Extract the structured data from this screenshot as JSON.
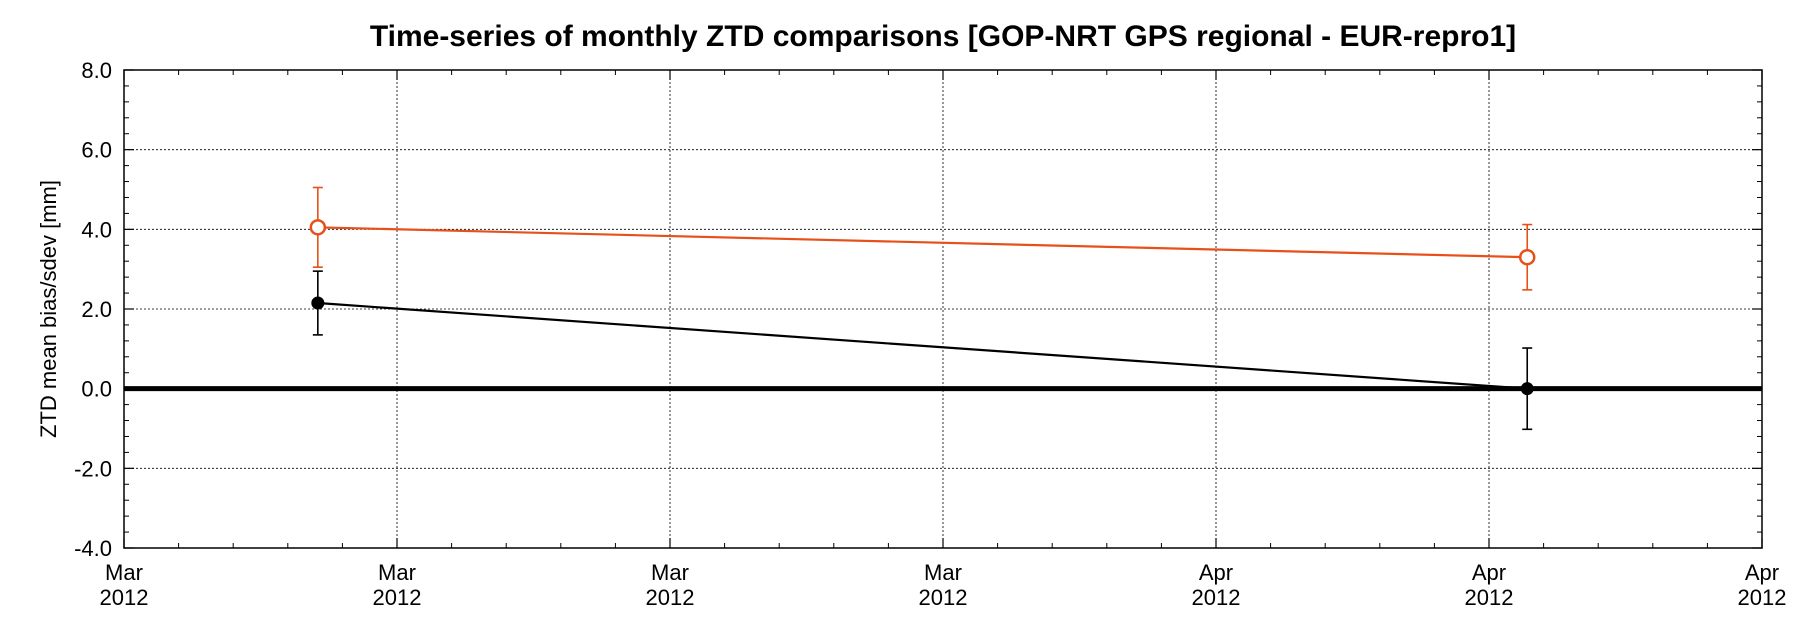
{
  "chart_data": {
    "type": "line",
    "title": "Time-series of monthly ZTD comparisons [GOP-NRT GPS regional - EUR-repro1]",
    "xlabel": "",
    "ylabel": "ZTD mean bias/sdev [mm]",
    "ylim": [
      -4.0,
      8.0
    ],
    "yticks": [
      "-4.0",
      "-2.0",
      "0.0",
      "2.0",
      "4.0",
      "6.0",
      "8.0"
    ],
    "xlim": [
      0,
      6
    ],
    "xticks": [
      {
        "month": "Mar",
        "year": "2012"
      },
      {
        "month": "Mar",
        "year": "2012"
      },
      {
        "month": "Mar",
        "year": "2012"
      },
      {
        "month": "Mar",
        "year": "2012"
      },
      {
        "month": "Apr",
        "year": "2012"
      },
      {
        "month": "Apr",
        "year": "2012"
      },
      {
        "month": "Apr",
        "year": "2012"
      }
    ],
    "grid": true,
    "zero_line": true,
    "series": [
      {
        "color": "#e8501a",
        "marker": "open-circle",
        "x": [
          0.71,
          5.14
        ],
        "values": [
          4.05,
          3.3
        ],
        "errors": [
          1.0,
          0.82
        ]
      },
      {
        "color": "#000000",
        "marker": "filled-circle",
        "x": [
          0.71,
          5.14
        ],
        "values": [
          2.15,
          0.0
        ],
        "errors": [
          0.8,
          1.02
        ]
      }
    ]
  }
}
